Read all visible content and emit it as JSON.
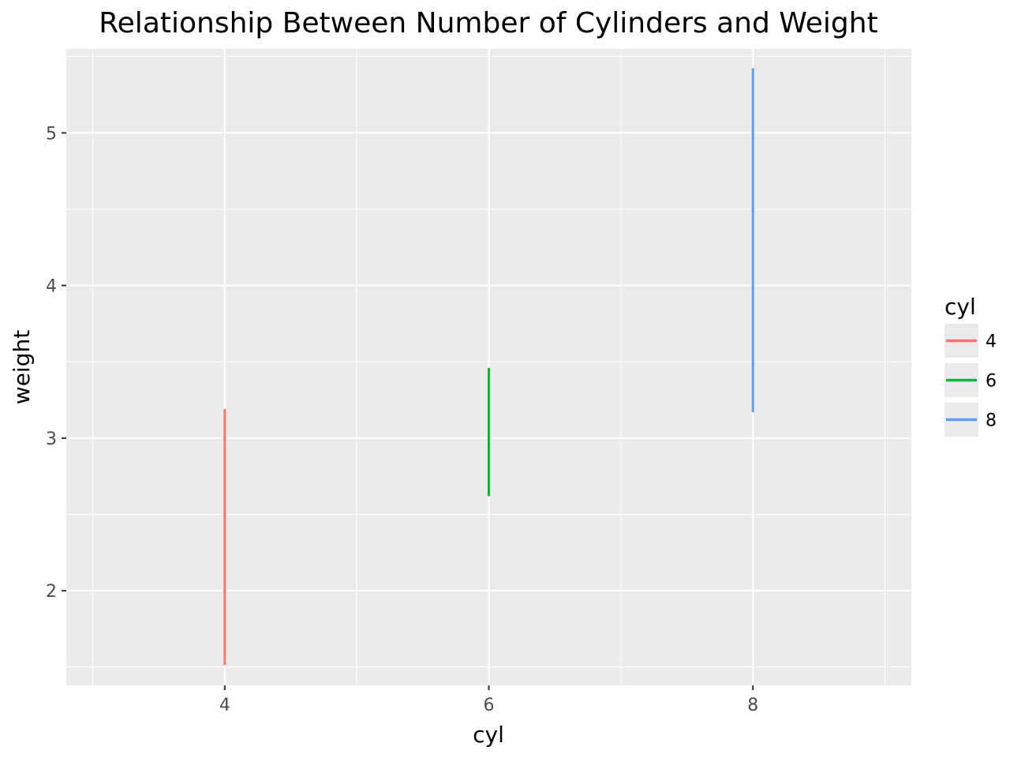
{
  "chart_data": {
    "type": "line",
    "title": "Relationship Between Number of Cylinders and Weight",
    "xlabel": "cyl",
    "ylabel": "weight",
    "xlim": [
      2.8,
      9.2
    ],
    "ylim": [
      1.38,
      5.55
    ],
    "x_ticks": [
      4,
      6,
      8
    ],
    "y_ticks": [
      2,
      3,
      4,
      5
    ],
    "grid": true,
    "legend": {
      "title": "cyl",
      "placement": "right"
    },
    "series": [
      {
        "name": "4",
        "color": "#F8766D",
        "x": [
          4,
          4
        ],
        "y": [
          1.513,
          3.19
        ]
      },
      {
        "name": "6",
        "color": "#00BA38",
        "x": [
          6,
          6
        ],
        "y": [
          2.62,
          3.46
        ]
      },
      {
        "name": "8",
        "color": "#619CFF",
        "x": [
          8,
          8
        ],
        "y": [
          3.17,
          5.424
        ]
      }
    ]
  }
}
